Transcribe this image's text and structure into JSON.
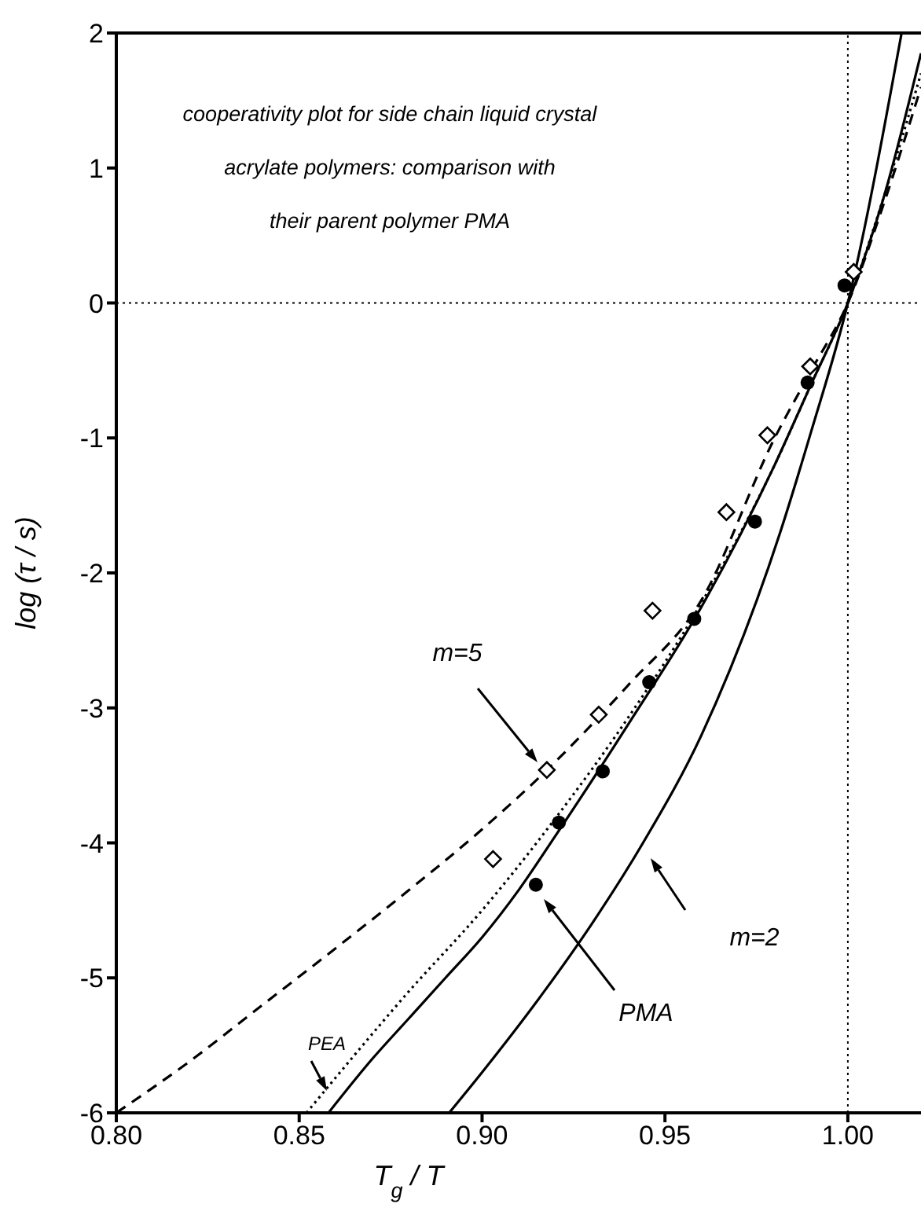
{
  "chart_data": {
    "type": "line",
    "title": "cooperativity plot for side chain liquid crystal\nacrylate polymers: comparison with\ntheir parent polymer PMA",
    "xlabel": "T$_{g}$ / T",
    "ylabel": "log (τ / s)",
    "xlim": [
      0.8,
      1.02
    ],
    "xticks": [
      {
        "value": 0.8,
        "label": "0.80"
      },
      0.85,
      {
        "value": 0.9,
        "label": "0.90"
      },
      0.95,
      {
        "value": 1.0,
        "label": "1.00"
      }
    ],
    "ylim": [
      -6,
      2
    ],
    "yticks": [
      -6,
      -5,
      -4,
      -3,
      -2,
      -1,
      0,
      1,
      2
    ],
    "series": [
      {
        "color": "#000000",
        "line_style": "dashed",
        "marker": "none",
        "x": [
          0.8,
          0.82,
          0.84,
          0.86,
          0.88,
          0.9,
          0.92,
          0.94,
          0.96,
          0.98,
          0.99,
          1.0,
          1.01,
          1.02
        ],
        "values": [
          -6.0,
          -5.62,
          -5.2,
          -4.78,
          -4.35,
          -3.9,
          -3.4,
          -2.83,
          -2.2,
          -1.0,
          -0.5,
          0,
          0.75,
          1.6
        ]
      },
      {
        "color": "#000000",
        "line_style": "dotted",
        "marker": "none",
        "x": [
          0.852,
          0.88,
          0.9,
          0.92,
          0.94,
          0.96,
          0.98,
          0.99,
          1.0,
          1.01,
          1.02
        ],
        "values": [
          -6,
          -5.1,
          -4.5,
          -3.82,
          -3.07,
          -2.22,
          -1.2,
          -0.6,
          0,
          0.8,
          1.7
        ]
      },
      {
        "color": "#000000",
        "line_style": "solid",
        "marker": "none",
        "x": [
          0.858,
          0.87,
          0.88,
          0.89,
          0.9,
          0.91,
          0.92,
          0.94,
          0.96,
          0.98,
          0.99,
          1.0,
          1.01,
          1.02
        ],
        "values": [
          -6,
          -5.6,
          -5.3,
          -5.0,
          -4.7,
          -4.35,
          -3.95,
          -3.12,
          -2.25,
          -1.2,
          -0.6,
          0,
          0.8,
          1.85
        ]
      },
      {
        "color": "#000000",
        "line_style": "solid",
        "marker": "none",
        "x": [
          0.891,
          0.9,
          0.917,
          0.93,
          0.944,
          0.96,
          0.9815,
          0.99,
          1.0,
          1.0147
        ],
        "values": [
          -6,
          -5.7,
          -5.1,
          -4.6,
          -4.0,
          -3.2,
          -1.7,
          -0.95,
          0,
          2.0
        ]
      },
      {
        "type": "scatter",
        "color": "#000000",
        "marker": "diamond",
        "x": [
          0.903,
          0.9177,
          0.9319,
          0.9466,
          0.9668,
          0.978,
          0.9897,
          1.0016
        ],
        "values": [
          -4.12,
          -3.46,
          -3.05,
          -2.28,
          -1.55,
          -0.98,
          -0.47,
          0.23
        ]
      },
      {
        "type": "scatter",
        "color": "#000000",
        "marker": "circle",
        "x": [
          0.9147,
          0.921,
          0.933,
          0.9457,
          0.958,
          0.9746,
          0.989,
          0.9991
        ],
        "values": [
          -4.31,
          -3.85,
          -3.47,
          -2.81,
          -2.34,
          -1.62,
          -0.59,
          0.13
        ]
      }
    ],
    "ref_lines": [
      {
        "axis": "x",
        "value": 1.0,
        "line_style": "dotted"
      },
      {
        "axis": "y",
        "value": 0,
        "line_style": "dotted"
      }
    ],
    "annotations": [
      "m=5",
      "m=2",
      "PMA",
      "PEA"
    ]
  }
}
